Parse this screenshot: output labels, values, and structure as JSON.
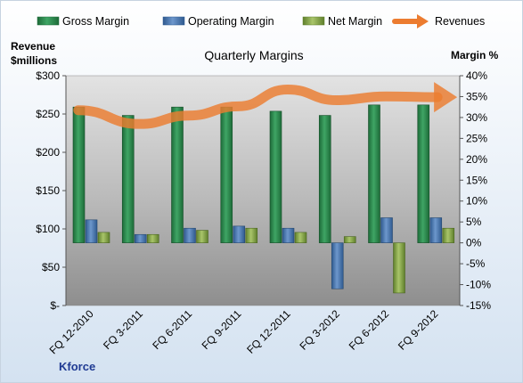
{
  "chart_data": {
    "type": "bar",
    "title": "Quarterly Margins",
    "categories": [
      "FQ 12-2010",
      "FQ 3-2011",
      "FQ 6-2011",
      "FQ 9-2011",
      "FQ 12-2011",
      "FQ 3-2012",
      "FQ 6-2012",
      "FQ 9-2012"
    ],
    "series": [
      {
        "name": "Gross Margin",
        "axis": "right",
        "type": "bar",
        "color": "#2e8b4f",
        "values": [
          32.5,
          30.5,
          32.5,
          32.5,
          31.5,
          30.5,
          33.0,
          33.0
        ]
      },
      {
        "name": "Operating Margin",
        "axis": "right",
        "type": "bar",
        "color": "#4f81bd",
        "values": [
          5.5,
          2.0,
          3.5,
          4.0,
          3.5,
          -11.0,
          6.0,
          6.0
        ]
      },
      {
        "name": "Net Margin",
        "axis": "right",
        "type": "bar",
        "color": "#8db04e",
        "values": [
          2.5,
          2.0,
          3.0,
          3.5,
          2.5,
          1.5,
          -12.0,
          3.5
        ]
      },
      {
        "name": "Revenues",
        "axis": "left",
        "type": "arrow-line",
        "color": "#ec7c30",
        "values": [
          255,
          237,
          248,
          260,
          282,
          268,
          273,
          272
        ]
      }
    ],
    "left_axis": {
      "title_line1": "Revenue",
      "title_line2": "$millions",
      "min": 0,
      "max": 300,
      "ticks": [
        0,
        50,
        100,
        150,
        200,
        250,
        300
      ],
      "tick_labels": [
        "$-",
        "$50",
        "$100",
        "$150",
        "$200",
        "$250",
        "$300"
      ]
    },
    "right_axis": {
      "title": "Margin %",
      "min": -15,
      "max": 40,
      "ticks": [
        -15,
        -10,
        -5,
        0,
        5,
        10,
        15,
        20,
        25,
        30,
        35,
        40
      ],
      "tick_labels": [
        "-15%",
        "-10%",
        "-5%",
        "0%",
        "5%",
        "10%",
        "15%",
        "20%",
        "25%",
        "30%",
        "35%",
        "40%"
      ]
    },
    "legend_position": "top",
    "grid": false,
    "footer_label": "Kforce"
  }
}
